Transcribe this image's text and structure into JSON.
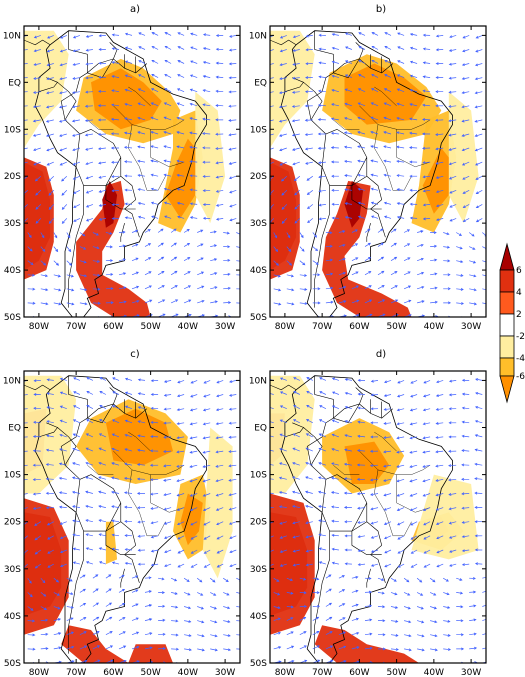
{
  "panels": [
    {
      "id": "a",
      "label": "a)"
    },
    {
      "id": "b",
      "label": "b)"
    },
    {
      "id": "c",
      "label": "c)"
    },
    {
      "id": "d",
      "label": "d)"
    }
  ],
  "axes": {
    "lat_ticks": [
      "10N",
      "EQ",
      "10S",
      "20S",
      "30S",
      "40S",
      "50S"
    ],
    "lon_ticks": [
      "80W",
      "70W",
      "60W",
      "50W",
      "40W",
      "30W"
    ],
    "lat_range": [
      -50,
      12
    ],
    "lon_range": [
      -84,
      -26
    ]
  },
  "colorbar": {
    "labels": [
      "6",
      "4",
      "2",
      "-2",
      "-4",
      "-6"
    ],
    "colors": [
      "#a80000",
      "#e03010",
      "#ff5a1e",
      "#ffffff",
      "#ffeea0",
      "#ffbe2a",
      "#ff9000"
    ]
  },
  "colors": {
    "vector": "#4060ff",
    "coast": "#000000",
    "pos_strong": "#a80000",
    "pos_mid": "#e03010",
    "neg_light": "#ffeea0",
    "neg_mid": "#ffbe2a",
    "neg_strong": "#ff9000"
  }
}
